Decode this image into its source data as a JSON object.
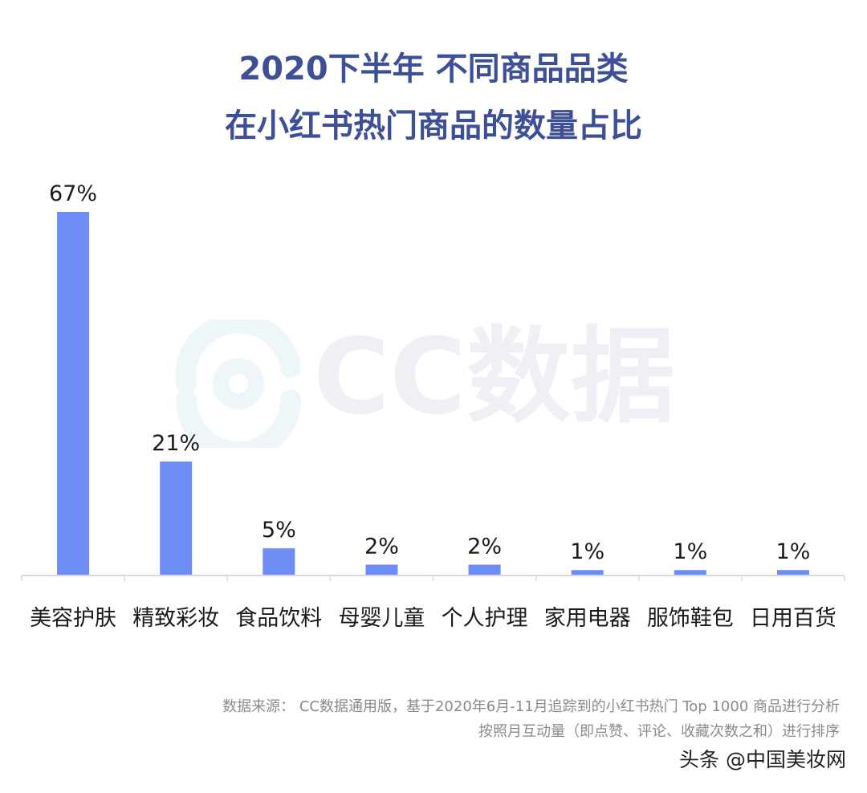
{
  "title_line1": "2020下半年 不同商品品类",
  "title_line2": "在小红书热门商品的数量占比",
  "watermark_text": "CC数据",
  "footnote_line1": "数据来源： CC数据通用版，基于2020年6月-11月追踪到的小红书热门 Top 1000 商品进行分析",
  "footnote_line2": "按照月互动量（即点赞、评论、收藏次数之和）进行排序",
  "credit": "头条 @中国美妆网",
  "colors": {
    "bar": "#6e8cf5",
    "title": "#3d4f96",
    "axis": "#d9d9d9"
  },
  "chart_data": {
    "type": "bar",
    "title": "2020下半年 不同商品品类 在小红书热门商品的数量占比",
    "categories": [
      "美容护肤",
      "精致彩妆",
      "食品饮料",
      "母婴儿童",
      "个人护理",
      "家用电器",
      "服饰鞋包",
      "日用百货"
    ],
    "values": [
      67,
      21,
      5,
      2,
      2,
      1,
      1,
      1
    ],
    "value_labels": [
      "67%",
      "21%",
      "5%",
      "2%",
      "2%",
      "1%",
      "1%",
      "1%"
    ],
    "unit": "%",
    "ylim": [
      0,
      67
    ],
    "grid": false,
    "legend": "none"
  }
}
